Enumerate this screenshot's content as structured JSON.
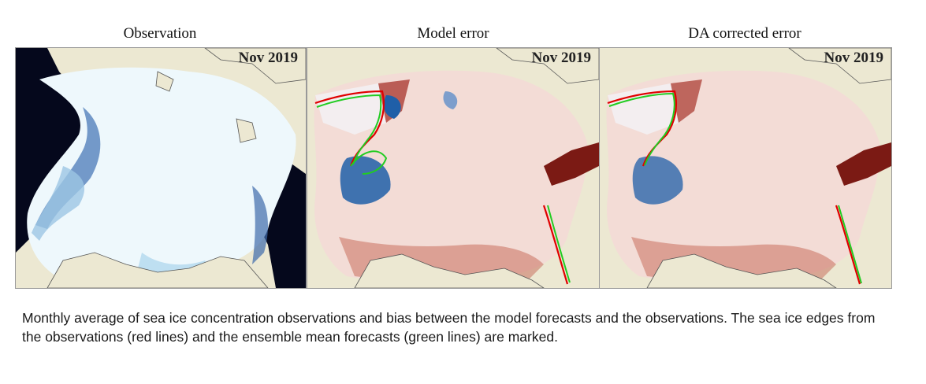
{
  "panels": [
    {
      "title": "Observation",
      "date": "Nov 2019",
      "kind": "observation"
    },
    {
      "title": "Model error",
      "date": "Nov 2019",
      "kind": "error"
    },
    {
      "title": "DA corrected error",
      "date": "Nov 2019",
      "kind": "error"
    }
  ],
  "caption": "Monthly average of sea ice concentration observations and bias between the model forecasts and the observations. The sea ice edges from the observations (red lines) and the ensemble mean forecasts (green lines) are marked.",
  "colors": {
    "land": "#ece8d2",
    "ice_high": "#eaf6fb",
    "open_water": "#05081c",
    "bias_positive": "#c0392b",
    "bias_negative": "#1f5fa8",
    "obs_edge": "#e00000",
    "model_edge": "#22cc22"
  }
}
